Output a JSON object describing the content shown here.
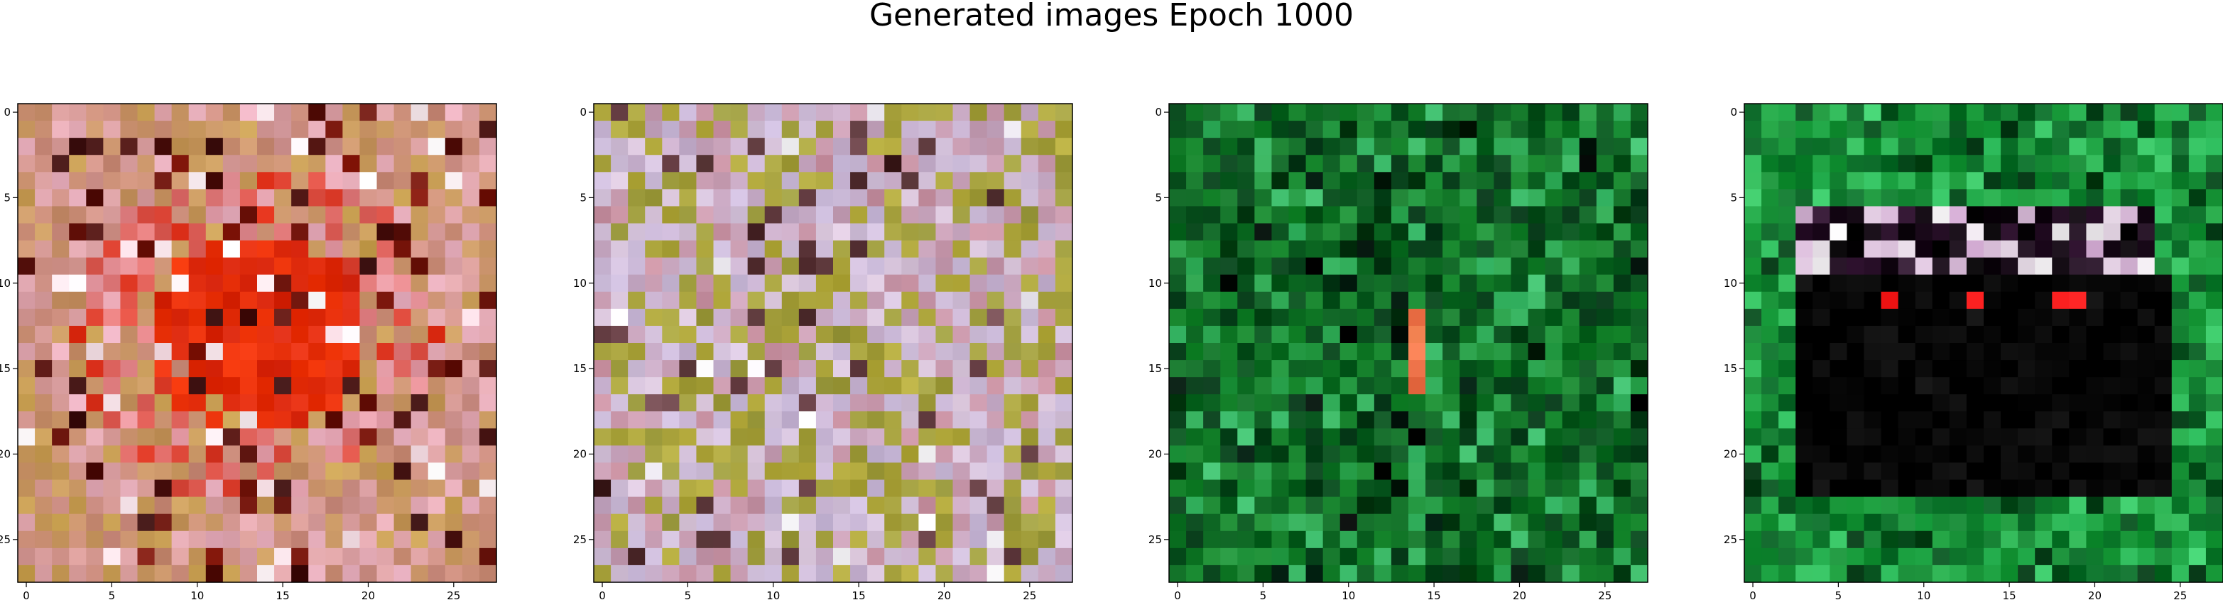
{
  "figure": {
    "title": "Generated images Epoch 1000"
  },
  "chart_data": [
    {
      "type": "heatmap",
      "image": "generated-sample-1",
      "palette": "red-pink noise with bright red center",
      "colors": {
        "primary": "#d92810",
        "secondary": "#c98a7a",
        "tertiary": "#e8b0c0",
        "dark": "#3a1010"
      },
      "grid_size": [
        28,
        28
      ],
      "xlim": [
        -0.5,
        27.5
      ],
      "ylim": [
        27.5,
        -0.5
      ],
      "xticks": [
        0,
        5,
        10,
        15,
        20,
        25
      ],
      "yticks": [
        0,
        5,
        10,
        15,
        20,
        25
      ],
      "xtick_labels": [
        "0",
        "5",
        "10",
        "15",
        "20",
        "25"
      ],
      "ytick_labels": [
        "0",
        "5",
        "10",
        "15",
        "20",
        "25"
      ]
    },
    {
      "type": "heatmap",
      "image": "generated-sample-2",
      "palette": "olive, pink and lavender noise",
      "colors": {
        "primary": "#9a9a40",
        "secondary": "#c890a0",
        "tertiary": "#c8b8d8",
        "dark": "#402020"
      },
      "grid_size": [
        28,
        28
      ],
      "xlim": [
        -0.5,
        27.5
      ],
      "ylim": [
        27.5,
        -0.5
      ],
      "xticks": [
        0,
        5,
        10,
        15,
        20,
        25
      ],
      "yticks": [
        0,
        5,
        10,
        15,
        20,
        25
      ],
      "xtick_labels": [
        "0",
        "5",
        "10",
        "15",
        "20",
        "25"
      ],
      "ytick_labels": [
        "0",
        "5",
        "10",
        "15",
        "20",
        "25"
      ]
    },
    {
      "type": "heatmap",
      "image": "generated-sample-3",
      "palette": "green noise",
      "colors": {
        "primary": "#1a8a30",
        "secondary": "#0a5a20",
        "tertiary": "#40c070",
        "dark": "#002010"
      },
      "grid_size": [
        28,
        28
      ],
      "xlim": [
        -0.5,
        27.5
      ],
      "ylim": [
        27.5,
        -0.5
      ],
      "xticks": [
        0,
        5,
        10,
        15,
        20,
        25
      ],
      "yticks": [
        0,
        5,
        10,
        15,
        20,
        25
      ],
      "xtick_labels": [
        "0",
        "5",
        "10",
        "15",
        "20",
        "25"
      ],
      "ytick_labels": [
        "0",
        "5",
        "10",
        "15",
        "20",
        "25"
      ]
    },
    {
      "type": "heatmap",
      "image": "generated-sample-4",
      "palette": "green border with black rectangle center",
      "colors": {
        "primary": "#1a9a3a",
        "secondary": "#0a6a28",
        "tertiary": "#40d070",
        "dark": "#000000"
      },
      "grid_size": [
        28,
        28
      ],
      "xlim": [
        -0.5,
        27.5
      ],
      "ylim": [
        27.5,
        -0.5
      ],
      "xticks": [
        0,
        5,
        10,
        15,
        20,
        25
      ],
      "yticks": [
        0,
        5,
        10,
        15,
        20,
        25
      ],
      "xtick_labels": [
        "0",
        "5",
        "10",
        "15",
        "20",
        "25"
      ],
      "ytick_labels": [
        "0",
        "5",
        "10",
        "15",
        "20",
        "25"
      ]
    }
  ]
}
